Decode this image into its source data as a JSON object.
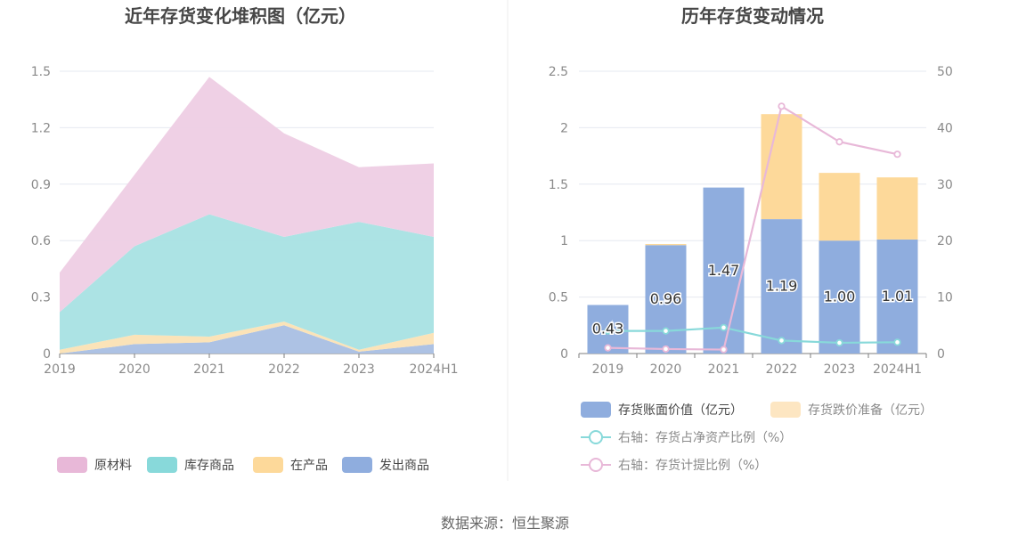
{
  "source_text": "数据来源：恒生聚源",
  "chart_data": [
    {
      "type": "area",
      "stacked": true,
      "title": "近年存货变化堆积图（亿元）",
      "x": [
        "2019",
        "2020",
        "2021",
        "2022",
        "2023",
        "2024H1"
      ],
      "ylim": [
        0,
        1.5
      ],
      "yticks": [
        "0",
        "0.3",
        "0.6",
        "0.9",
        "1.2",
        "1.5"
      ],
      "grid": true,
      "legend_position": "bottom",
      "series": [
        {
          "name": "发出商品",
          "color": "#a9bfe3",
          "legend_color": "#8fadde",
          "values": [
            0.0,
            0.05,
            0.06,
            0.15,
            0.01,
            0.05
          ]
        },
        {
          "name": "在产品",
          "color": "#fbe2b4",
          "legend_color": "#fdd99a",
          "values": [
            0.02,
            0.05,
            0.03,
            0.02,
            0.01,
            0.06
          ]
        },
        {
          "name": "库存商品",
          "color": "#a8e1e3",
          "legend_color": "#88d9da",
          "values": [
            0.2,
            0.47,
            0.65,
            0.45,
            0.68,
            0.51
          ]
        },
        {
          "name": "原材料",
          "color": "#eecde4",
          "legend_color": "#e8b8d8",
          "values": [
            0.21,
            0.38,
            0.73,
            0.55,
            0.29,
            0.39
          ]
        }
      ],
      "legend_order": [
        "原材料",
        "库存商品",
        "在产品",
        "发出商品"
      ]
    },
    {
      "type": "bar",
      "stacked": true,
      "title": "历年存货变动情况",
      "categories": [
        "2019",
        "2020",
        "2021",
        "2022",
        "2023",
        "2024H1"
      ],
      "ylim": [
        0,
        2.5
      ],
      "yticks": [
        "0",
        "0.5",
        "1",
        "1.5",
        "2",
        "2.5"
      ],
      "y2lim": [
        0,
        50
      ],
      "y2ticks": [
        "0",
        "10",
        "20",
        "30",
        "40",
        "50"
      ],
      "grid": true,
      "legend_position": "bottom",
      "series": [
        {
          "name": "存货账面价值（亿元）",
          "kind": "bar",
          "axis": "left",
          "color": "#8fadde",
          "values": [
            0.43,
            0.96,
            1.47,
            1.19,
            1.0,
            1.01
          ],
          "labels": [
            "0.43",
            "0.96",
            "1.47",
            "1.19",
            "1.00",
            "1.01"
          ]
        },
        {
          "name": "存货跌价准备（亿元）",
          "kind": "bar",
          "axis": "left",
          "color": "#fdd99a",
          "legend_color": "#fde6c2",
          "values": [
            0.0,
            0.01,
            0.0,
            0.93,
            0.6,
            0.55
          ]
        },
        {
          "name": "右轴：存货占净资产比例（%）",
          "kind": "line",
          "axis": "right",
          "color": "#88d9da",
          "values": [
            4.0,
            4.0,
            4.6,
            2.3,
            1.9,
            2.0
          ]
        },
        {
          "name": "右轴：存货计提比例（%）",
          "kind": "line",
          "axis": "right",
          "color": "#e8b8d8",
          "values": [
            1.0,
            0.8,
            0.7,
            43.8,
            37.5,
            35.3
          ]
        }
      ]
    }
  ]
}
